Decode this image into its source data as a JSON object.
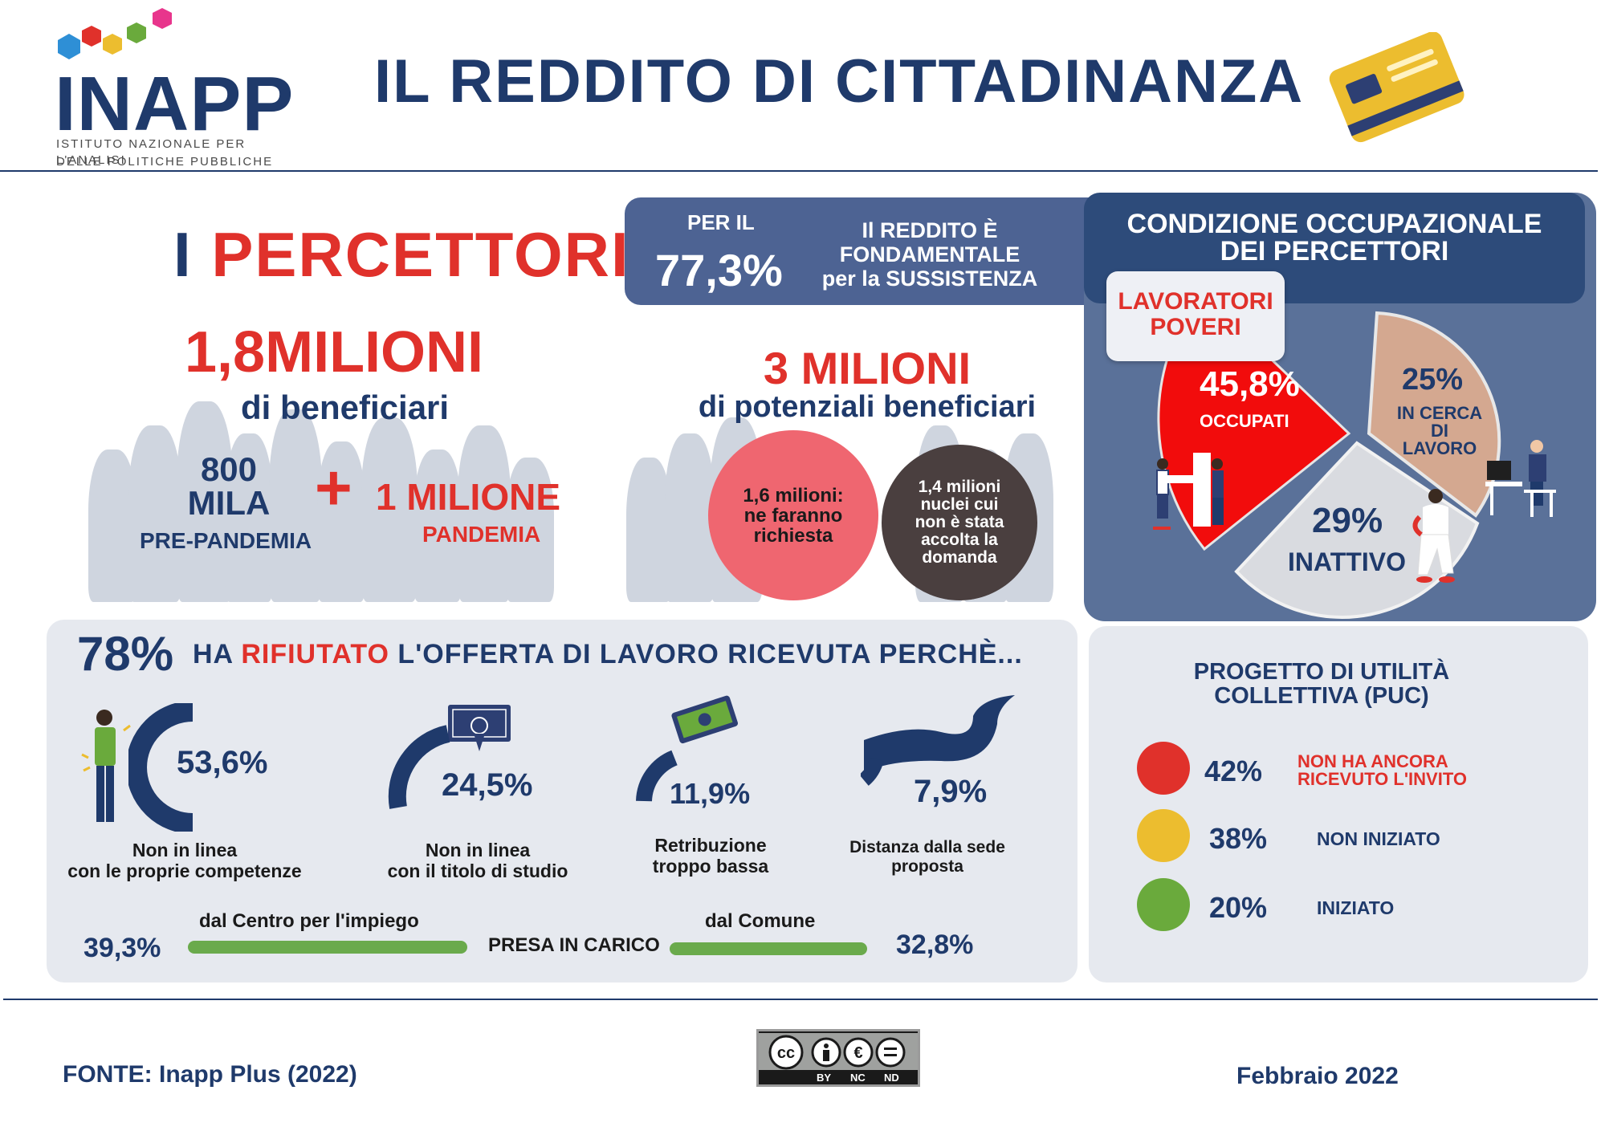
{
  "header": {
    "logo_word": "INAPP",
    "logo_sub_line1": "ISTITUTO NAZIONALE PER L'ANALISI",
    "logo_sub_line2": "DELLE POLITICHE PUBBLICHE",
    "title": "IL REDDITO DI CITTADINANZA"
  },
  "percettori": {
    "heading_bar": "I",
    "heading_word": "PERCETTORI",
    "total": "1,8MILIONI",
    "total_sub": "di beneficiari",
    "pre_value_line1": "800",
    "pre_value_line2": "MILA",
    "pre_label": "PRE-PANDEMIA",
    "plus": "+",
    "pandemia_value": "1 MILIONE",
    "pandemia_label": "PANDEMIA"
  },
  "sussistenza": {
    "per_il": "PER IL",
    "value": "77,3%",
    "text_line1": "Il REDDITO  È",
    "text_line2": "FONDAMENTALE",
    "text_line3": "per la SUSSISTENZA"
  },
  "potenziali": {
    "total": "3 MILIONI",
    "sub": "di potenziali beneficiari",
    "circle1_line1": "1,6 milioni:",
    "circle1_line2": "ne faranno",
    "circle1_line3": "richiesta",
    "circle2_line1": "1,4 milioni",
    "circle2_line2": "nuclei cui",
    "circle2_line3": "non è stata",
    "circle2_line4": "accolta la",
    "circle2_line5": "domanda"
  },
  "condizione": {
    "title_line1": "CONDIZIONE OCCUPAZIONALE",
    "title_line2": "DEI PERCETTORI",
    "badge_line1": "LAVORATORI",
    "badge_line2": "POVERI",
    "occupati_value": "45,8%",
    "occupati_label": "OCCUPATI",
    "cerca_value": "25%",
    "cerca_label_line1": "IN CERCA",
    "cerca_label_line2": "DI",
    "cerca_label_line3": "LAVORO",
    "inattivo_value": "29%",
    "inattivo_label": "INATTIVO",
    "colors": {
      "occupati": "#f20c0c",
      "cerca": "#d4a890",
      "inattivo": "#d9dbe0"
    }
  },
  "rifiuto": {
    "value": "78%",
    "text_pre": "HA",
    "text_red": "RIFIUTATO",
    "text_post": "L'OFFERTA DI LAVORO RICEVUTA PERCHÈ...",
    "reasons": [
      {
        "value": "53,6%",
        "line1": "Non in linea",
        "line2": "con le proprie competenze",
        "share": 0.536
      },
      {
        "value": "24,5%",
        "line1": "Non in linea",
        "line2": "con il titolo di studio",
        "share": 0.245
      },
      {
        "value": "11,9%",
        "line1": "Retribuzione",
        "line2": "troppo bassa",
        "share": 0.119
      },
      {
        "value": "7,9%",
        "line1": "Distanza dalla sede",
        "line2": "proposta",
        "share": 0.079
      }
    ],
    "presa_label": "PRESA IN CARICO",
    "centro_label": "dal Centro per l'impiego",
    "centro_value": "39,3%",
    "comune_label": "dal Comune",
    "comune_value": "32,8%"
  },
  "puc": {
    "title_line1": "PROGETTO DI UTILITÀ",
    "title_line2": "COLLETTIVA (PUC)",
    "items": [
      {
        "value": "42%",
        "label_line1": "NON HA ANCORA",
        "label_line2": "RICEVUTO L'INVITO",
        "color": "#e0312b"
      },
      {
        "value": "38%",
        "label_line1": "NON INIZIATO",
        "label_line2": "",
        "color": "#ecbd2f"
      },
      {
        "value": "20%",
        "label_line1": "INIZIATO",
        "label_line2": "",
        "color": "#6aaa3c"
      }
    ]
  },
  "footer": {
    "fonte": "FONTE:  Inapp Plus (2022)",
    "license_by": "BY",
    "license_nc": "NC",
    "license_nd": "ND",
    "date": "Febbraio 2022"
  }
}
